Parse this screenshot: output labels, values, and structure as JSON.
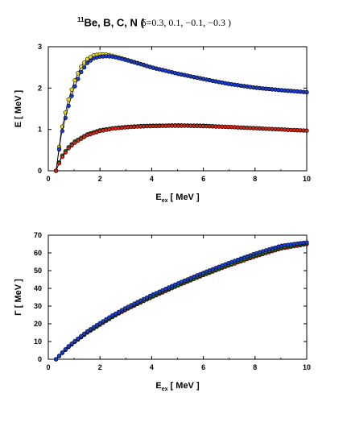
{
  "title": {
    "superscript": "11",
    "main": "Be, B, C, N (",
    "delta": "δ=0.3, 0.1, −0.1, −0.3 )"
  },
  "chart_data": [
    {
      "type": "scatter",
      "title": "",
      "xlabel": "E",
      "xlabel_sub": "ex",
      "xlabel_unit": "[ MeV ]",
      "ylabel": "E [ MeV ]",
      "xlim": [
        0,
        10
      ],
      "ylim": [
        0,
        3
      ],
      "xticks": [
        "0",
        "2",
        "4",
        "6",
        "8",
        "10"
      ],
      "yticks": [
        "0",
        "1",
        "2",
        "3"
      ],
      "grid": false,
      "series": [
        {
          "color": "#f0e000",
          "x": [
            0.3,
            0.5,
            0.75,
            1,
            1.25,
            1.5,
            1.75,
            2,
            2.25,
            2.5,
            3,
            3.5,
            4,
            5,
            6,
            7,
            8,
            9,
            10
          ],
          "y": [
            0,
            0.95,
            1.65,
            2.15,
            2.5,
            2.7,
            2.79,
            2.82,
            2.81,
            2.78,
            2.69,
            2.6,
            2.5,
            2.35,
            2.22,
            2.1,
            2.01,
            1.95,
            1.9
          ]
        },
        {
          "color": "#1a3cc8",
          "x": [
            0.3,
            0.5,
            0.75,
            1,
            1.25,
            1.5,
            1.75,
            2,
            2.25,
            2.5,
            3,
            3.5,
            4,
            5,
            6,
            7,
            8,
            9,
            10
          ],
          "y": [
            0,
            0.85,
            1.5,
            2.0,
            2.37,
            2.6,
            2.72,
            2.76,
            2.77,
            2.76,
            2.68,
            2.59,
            2.5,
            2.35,
            2.22,
            2.1,
            2.01,
            1.95,
            1.9
          ]
        },
        {
          "color": "#1f8a1f",
          "x": [
            0.3,
            0.5,
            0.75,
            1,
            1.5,
            2,
            2.5,
            3,
            3.5,
            4,
            5,
            6,
            7,
            8,
            9,
            10
          ],
          "y": [
            0,
            0.33,
            0.55,
            0.7,
            0.88,
            0.98,
            1.03,
            1.06,
            1.08,
            1.09,
            1.1,
            1.09,
            1.06,
            1.03,
            1.0,
            0.97
          ]
        },
        {
          "color": "#c82818",
          "x": [
            0.3,
            0.5,
            0.75,
            1,
            1.5,
            2,
            2.5,
            3,
            3.5,
            4,
            5,
            6,
            7,
            8,
            9,
            10
          ],
          "y": [
            0,
            0.3,
            0.52,
            0.67,
            0.86,
            0.96,
            1.02,
            1.05,
            1.07,
            1.08,
            1.09,
            1.08,
            1.06,
            1.03,
            1.0,
            0.97
          ]
        }
      ]
    },
    {
      "type": "scatter",
      "title": "",
      "xlabel": "E",
      "xlabel_sub": "ex",
      "xlabel_unit": "[ MeV ]",
      "ylabel": "Γ [ MeV ]",
      "xlim": [
        0,
        10
      ],
      "ylim": [
        0,
        70
      ],
      "xticks": [
        "0",
        "2",
        "4",
        "6",
        "8",
        "10"
      ],
      "yticks": [
        "0",
        "10",
        "20",
        "30",
        "40",
        "50",
        "60",
        "70"
      ],
      "grid": false,
      "series": [
        {
          "color": "#c82818",
          "x": [
            0.3,
            0.5,
            0.75,
            1,
            1.5,
            2,
            2.5,
            3,
            4,
            5,
            6,
            7,
            8,
            9,
            10
          ],
          "y": [
            0,
            3,
            6.5,
            9.5,
            15,
            19.5,
            24,
            28,
            35,
            41.5,
            47.5,
            53,
            58,
            62.5,
            65
          ]
        },
        {
          "color": "#1f8a1f",
          "x": [
            0.3,
            0.5,
            0.75,
            1,
            1.5,
            2,
            2.5,
            3,
            4,
            5,
            6,
            7,
            8,
            9,
            10
          ],
          "y": [
            0,
            3.1,
            6.7,
            9.7,
            15.3,
            19.9,
            24.4,
            28.4,
            35.5,
            42,
            48,
            53.6,
            58.7,
            63.2,
            65.5
          ]
        },
        {
          "color": "#1a3cc8",
          "x": [
            0.3,
            0.5,
            0.75,
            1,
            1.5,
            2,
            2.5,
            3,
            4,
            5,
            6,
            7,
            8,
            9,
            10
          ],
          "y": [
            0,
            3.2,
            6.9,
            10,
            15.7,
            20.4,
            24.9,
            29,
            36.2,
            42.7,
            48.8,
            54.4,
            59.6,
            64,
            66
          ]
        }
      ]
    }
  ]
}
